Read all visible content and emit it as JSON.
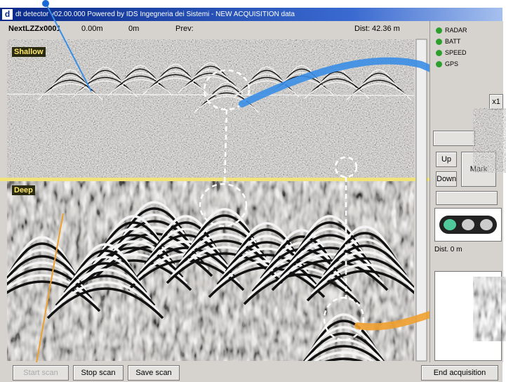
{
  "title_bar": {
    "title": "dt detector v02.00.000 Powered by IDS Ingegneria dei Sistemi - NEW ACQUISITION data"
  },
  "status": {
    "file": "NextLZZx0001",
    "position": "0.00m",
    "offset": "0m",
    "prev": "Prev:",
    "distance": "Dist: 42.36 m"
  },
  "panels": {
    "shallow": "Shallow",
    "deep": "Deep"
  },
  "indicators": [
    "RADAR",
    "BATT",
    "SPEED",
    "GPS"
  ],
  "controls": {
    "zoom": "x1",
    "up": "Up",
    "down": "Down",
    "mark": "Mark",
    "dist": "Dist. 0 m"
  },
  "buttons": [
    "Start scan",
    "Stop scan",
    "Save scan",
    "End acquisition"
  ]
}
